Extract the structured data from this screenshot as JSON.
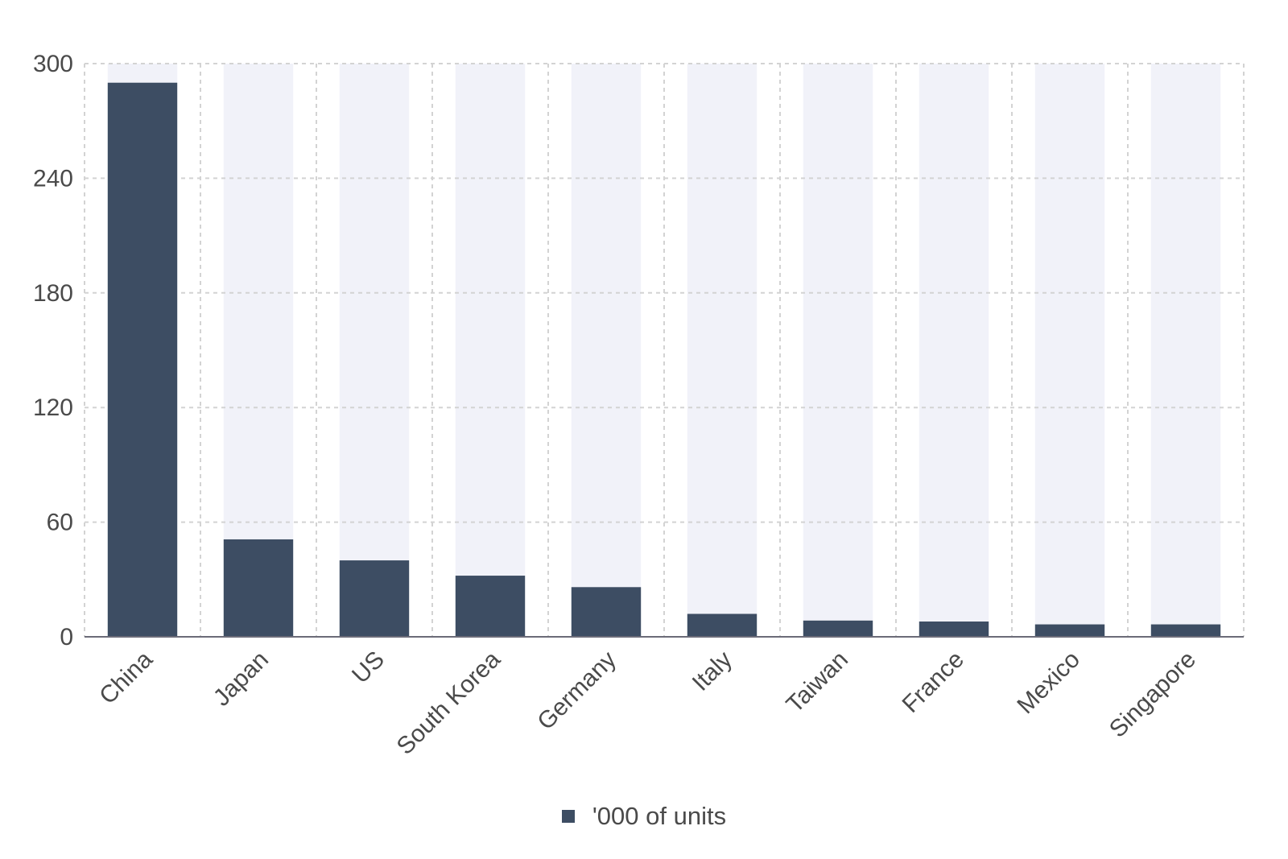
{
  "chart_data": {
    "type": "bar",
    "categories": [
      "China",
      "Japan",
      "US",
      "South Korea",
      "Germany",
      "Italy",
      "Taiwan",
      "France",
      "Mexico",
      "Singapore"
    ],
    "series": [
      {
        "name": "'000 of units",
        "values": [
          290,
          51,
          40,
          32,
          26,
          12,
          8.5,
          8,
          6.5,
          6.5
        ]
      }
    ],
    "ylim": [
      0,
      300
    ],
    "yticks": [
      0,
      60,
      120,
      180,
      240,
      300
    ],
    "grid": true,
    "legend_position": "bottom-center",
    "colors": {
      "bar": "#3d4d63",
      "bar_background": "#f1f2f9",
      "grid": "#d3d3d3",
      "axis": "#6b6b78",
      "text": "#4a4a4a"
    }
  },
  "legend": {
    "label": "'000 of units"
  }
}
